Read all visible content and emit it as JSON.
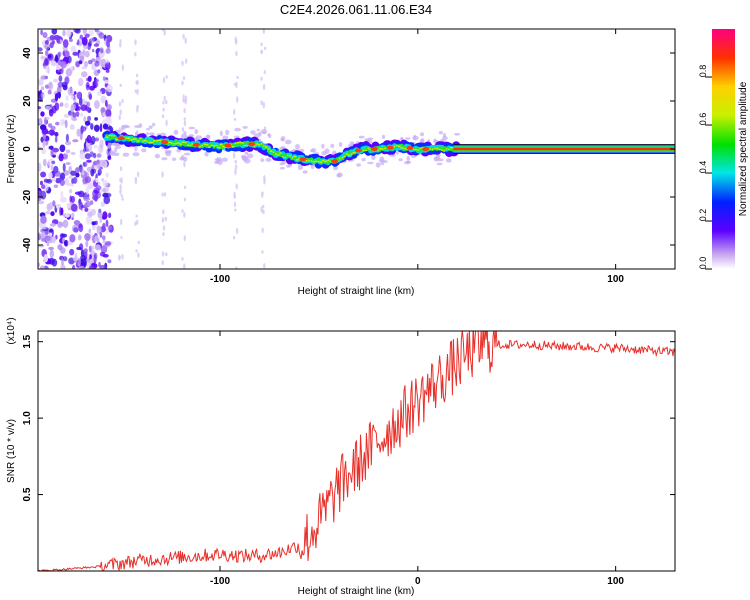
{
  "title": "C2E4.2026.061.11.06.E34",
  "colors": {
    "line": "#e8302a",
    "axis": "#000000",
    "background": "#ffffff"
  },
  "chart_data": [
    {
      "type": "heatmap",
      "name": "spectrogram",
      "xlabel": "Height of straight line (km)",
      "ylabel": "Frequency (Hz)",
      "xlim": [
        -192,
        130
      ],
      "ylim": [
        -50,
        50
      ],
      "xticks": [
        -100,
        0,
        100
      ],
      "xtick_labels": [
        "-100",
        "",
        "100"
      ],
      "yticks": [
        -40,
        -20,
        0,
        20,
        40
      ],
      "ridge": {
        "x": [
          -155,
          -145,
          -130,
          -115,
          -100,
          -90,
          -80,
          -72,
          -60,
          -50,
          -42,
          -35,
          -28,
          -20,
          -10,
          0,
          10,
          20,
          130
        ],
        "y": [
          5,
          4,
          3,
          2,
          1,
          2,
          2,
          -2,
          -4,
          -5,
          -5,
          -2,
          0,
          0,
          1,
          0,
          0,
          0,
          0
        ]
      },
      "colorbar": {
        "label": "Normalized spectral amplitude",
        "range": [
          0,
          1
        ],
        "ticks": [
          0.0,
          0.2,
          0.4,
          0.6,
          0.8
        ],
        "tick_labels": [
          "0.0",
          "0.2",
          "0.4",
          "0.6",
          "0.8"
        ]
      }
    },
    {
      "type": "line",
      "name": "snr",
      "xlabel": "Height of straight line (km)",
      "ylabel": "SNR (10 * v/v)",
      "scale_note": "(x10⁴)",
      "xlim": [
        -192,
        130
      ],
      "ylim": [
        0,
        1.57
      ],
      "xticks": [
        -100,
        0,
        100
      ],
      "xtick_labels": [
        "-100",
        "0",
        "100"
      ],
      "yticks": [
        0.5,
        1.0,
        1.5
      ],
      "ytick_labels": [
        "0.5",
        "1.0",
        "1.5"
      ],
      "series": [
        {
          "name": "SNR",
          "x": [
            -192,
            -180,
            -170,
            -160,
            -150,
            -140,
            -130,
            -120,
            -110,
            -100,
            -90,
            -80,
            -70,
            -60,
            -55,
            -50,
            -45,
            -40,
            -35,
            -30,
            -25,
            -20,
            -15,
            -10,
            -5,
            0,
            5,
            10,
            15,
            20,
            25,
            30,
            35,
            40,
            50,
            60,
            70,
            80,
            90,
            100,
            110,
            120,
            130
          ],
          "values": [
            0.0,
            0.01,
            0.02,
            0.03,
            0.05,
            0.07,
            0.08,
            0.09,
            0.1,
            0.11,
            0.1,
            0.1,
            0.12,
            0.17,
            0.23,
            0.32,
            0.43,
            0.55,
            0.63,
            0.7,
            0.78,
            0.85,
            0.92,
            0.98,
            1.05,
            1.12,
            1.18,
            1.24,
            1.3,
            1.36,
            1.42,
            1.46,
            1.48,
            1.48,
            1.48,
            1.48,
            1.47,
            1.47,
            1.46,
            1.46,
            1.45,
            1.44,
            1.43
          ]
        }
      ]
    }
  ]
}
